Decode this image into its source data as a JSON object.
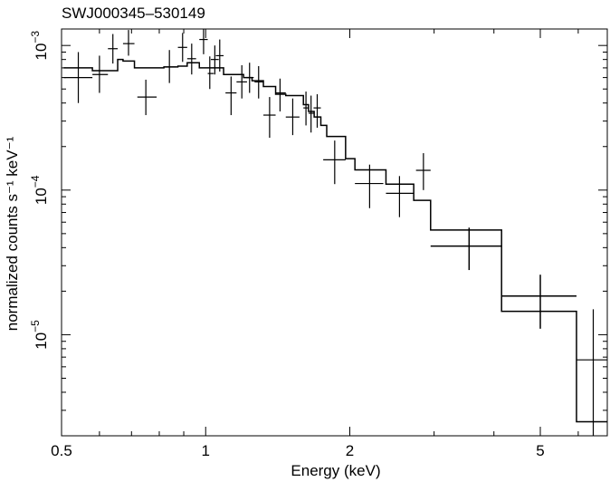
{
  "chart_data": {
    "type": "scatter",
    "title": "SWJ000345–530149",
    "xlabel": "Energy (keV)",
    "ylabel": "normalized counts s⁻¹ keV⁻¹",
    "xscale": "log",
    "yscale": "log",
    "xlim": [
      0.5,
      6.9
    ],
    "ylim": [
      2e-06,
      0.0013
    ],
    "grid": false,
    "x_tick_labels": [
      {
        "value": 0.5,
        "label": "0.5"
      },
      {
        "value": 1,
        "label": "1"
      },
      {
        "value": 2,
        "label": "2"
      },
      {
        "value": 5,
        "label": "5"
      }
    ],
    "y_tick_labels": [
      {
        "value": 0.001,
        "base": "10",
        "exp": "−3"
      },
      {
        "value": 0.0001,
        "base": "10",
        "exp": "−4"
      },
      {
        "value": 1e-05,
        "base": "10",
        "exp": "−5"
      }
    ],
    "series": [
      {
        "type": "errorbar",
        "points": [
          {
            "x": 0.542,
            "xlo": 0.505,
            "xhi": 0.58,
            "y": 0.0006,
            "ylo": 0.0004,
            "yhi": 0.0009
          },
          {
            "x": 0.6,
            "xlo": 0.58,
            "xhi": 0.625,
            "y": 0.00063,
            "ylo": 0.00047,
            "yhi": 0.00085
          },
          {
            "x": 0.64,
            "xlo": 0.625,
            "xhi": 0.655,
            "y": 0.00095,
            "ylo": 0.00075,
            "yhi": 0.0012
          },
          {
            "x": 0.69,
            "xlo": 0.672,
            "xhi": 0.71,
            "y": 0.00103,
            "ylo": 0.00085,
            "yhi": 0.00128
          },
          {
            "x": 0.75,
            "xlo": 0.72,
            "xhi": 0.79,
            "y": 0.00044,
            "ylo": 0.00033,
            "yhi": 0.00058
          },
          {
            "x": 0.84,
            "xlo": 0.818,
            "xhi": 0.868,
            "y": 0.00071,
            "ylo": 0.00055,
            "yhi": 0.00093
          },
          {
            "x": 0.895,
            "xlo": 0.875,
            "xhi": 0.915,
            "y": 0.00097,
            "ylo": 0.00077,
            "yhi": 0.00122
          },
          {
            "x": 0.935,
            "xlo": 0.915,
            "xhi": 0.955,
            "y": 0.00081,
            "ylo": 0.00063,
            "yhi": 0.00103
          },
          {
            "x": 0.99,
            "xlo": 0.97,
            "xhi": 1.01,
            "y": 0.0011,
            "ylo": 0.00087,
            "yhi": 0.0013
          },
          {
            "x": 1.02,
            "xlo": 1.01,
            "xhi": 1.04,
            "y": 0.00064,
            "ylo": 0.0005,
            "yhi": 0.00084
          },
          {
            "x": 1.045,
            "xlo": 1.025,
            "xhi": 1.065,
            "y": 0.0008,
            "ylo": 0.00063,
            "yhi": 0.001
          },
          {
            "x": 1.07,
            "xlo": 1.05,
            "xhi": 1.09,
            "y": 0.00085,
            "ylo": 0.00066,
            "yhi": 0.0011
          },
          {
            "x": 1.13,
            "xlo": 1.1,
            "xhi": 1.16,
            "y": 0.00047,
            "ylo": 0.00033,
            "yhi": 0.00061
          },
          {
            "x": 1.19,
            "xlo": 1.16,
            "xhi": 1.22,
            "y": 0.00056,
            "ylo": 0.00043,
            "yhi": 0.00073
          },
          {
            "x": 1.235,
            "xlo": 1.215,
            "xhi": 1.26,
            "y": 0.0006,
            "ylo": 0.00047,
            "yhi": 0.00076
          },
          {
            "x": 1.29,
            "xlo": 1.265,
            "xhi": 1.32,
            "y": 0.00056,
            "ylo": 0.00043,
            "yhi": 0.00072
          },
          {
            "x": 1.36,
            "xlo": 1.32,
            "xhi": 1.4,
            "y": 0.00033,
            "ylo": 0.00023,
            "yhi": 0.00044
          },
          {
            "x": 1.43,
            "xlo": 1.4,
            "xhi": 1.47,
            "y": 0.00047,
            "ylo": 0.00035,
            "yhi": 0.00059
          },
          {
            "x": 1.52,
            "xlo": 1.47,
            "xhi": 1.57,
            "y": 0.00032,
            "ylo": 0.00024,
            "yhi": 0.00043
          },
          {
            "x": 1.62,
            "xlo": 1.6,
            "xhi": 1.64,
            "y": 0.00037,
            "ylo": 0.00028,
            "yhi": 0.00048
          },
          {
            "x": 1.66,
            "xlo": 1.64,
            "xhi": 1.685,
            "y": 0.00034,
            "ylo": 0.00025,
            "yhi": 0.00045
          },
          {
            "x": 1.71,
            "xlo": 1.68,
            "xhi": 1.74,
            "y": 0.00037,
            "ylo": 0.00027,
            "yhi": 0.00046
          },
          {
            "x": 1.86,
            "xlo": 1.76,
            "xhi": 1.96,
            "y": 0.000162,
            "ylo": 0.00011,
            "yhi": 0.00022
          },
          {
            "x": 2.2,
            "xlo": 2.05,
            "xhi": 2.35,
            "y": 0.000111,
            "ylo": 7.5e-05,
            "yhi": 0.00015
          },
          {
            "x": 2.54,
            "xlo": 2.38,
            "xhi": 2.72,
            "y": 9.5e-05,
            "ylo": 6.5e-05,
            "yhi": 0.000125
          },
          {
            "x": 2.85,
            "xlo": 2.75,
            "xhi": 2.95,
            "y": 0.000137,
            "ylo": 0.0001,
            "yhi": 0.00018
          },
          {
            "x": 3.55,
            "xlo": 2.95,
            "xhi": 4.15,
            "y": 4.1e-05,
            "ylo": 2.8e-05,
            "yhi": 5.5e-05
          },
          {
            "x": 5.0,
            "xlo": 4.15,
            "xhi": 5.95,
            "y": 1.85e-05,
            "ylo": 1.1e-05,
            "yhi": 2.6e-05
          },
          {
            "x": 6.45,
            "xlo": 5.95,
            "xhi": 6.9,
            "y": 6.7e-06,
            "ylo": 2e-06,
            "yhi": 1.5e-05
          }
        ]
      },
      {
        "type": "step",
        "points": [
          [
            0.505,
            0.0007
          ],
          [
            0.58,
            0.00067
          ],
          [
            0.625,
            0.00067
          ],
          [
            0.655,
            0.0008
          ],
          [
            0.672,
            0.00078
          ],
          [
            0.71,
            0.0007
          ],
          [
            0.818,
            0.00071
          ],
          [
            0.875,
            0.00072
          ],
          [
            0.915,
            0.00076
          ],
          [
            0.955,
            0.00076
          ],
          [
            0.97,
            0.0007
          ],
          [
            1.03,
            0.0007
          ],
          [
            1.09,
            0.00063
          ],
          [
            1.14,
            0.00063
          ],
          [
            1.2,
            0.0006
          ],
          [
            1.25,
            0.00057
          ],
          [
            1.32,
            0.00052
          ],
          [
            1.4,
            0.00046
          ],
          [
            1.47,
            0.00045
          ],
          [
            1.53,
            0.00045
          ],
          [
            1.6,
            0.00039
          ],
          [
            1.64,
            0.00035
          ],
          [
            1.685,
            0.00032
          ],
          [
            1.74,
            0.00028
          ],
          [
            1.79,
            0.000235
          ],
          [
            1.96,
            0.000165
          ],
          [
            2.05,
            0.000138
          ],
          [
            2.38,
            0.00011
          ],
          [
            2.72,
            8.5e-05
          ],
          [
            2.95,
            5.3e-05
          ],
          [
            4.15,
            1.45e-05
          ],
          [
            5.95,
            2.5e-06
          ],
          [
            6.9,
            2.5e-06
          ]
        ]
      }
    ]
  }
}
